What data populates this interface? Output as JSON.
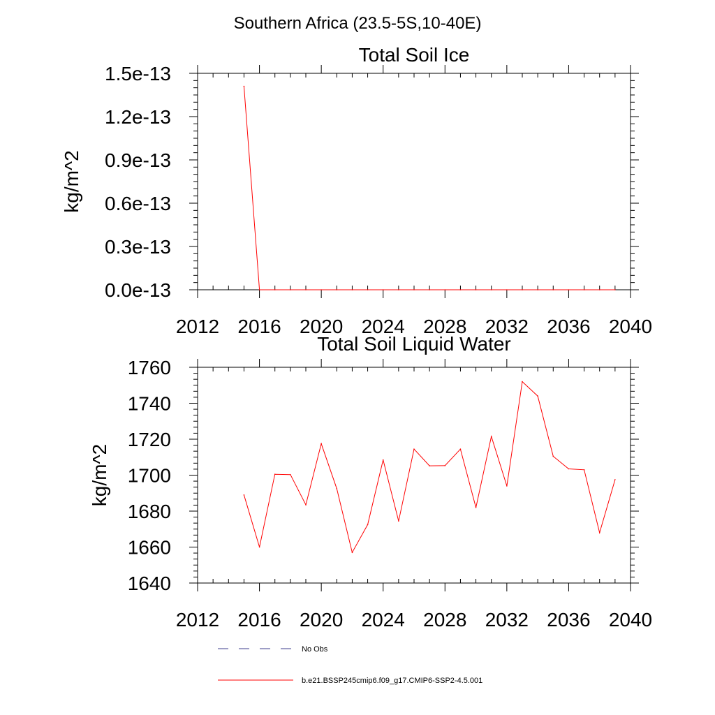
{
  "page_title": "Southern Africa (23.5-5S,10-40E)",
  "chart_data": [
    {
      "type": "line",
      "title": "Total Soil Ice",
      "xlabel": "",
      "ylabel": "kg/m^2",
      "xlim": [
        2012,
        2040
      ],
      "ylim": [
        0,
        1.5e-13
      ],
      "xticks": [
        2012,
        2016,
        2020,
        2024,
        2028,
        2032,
        2036,
        2040
      ],
      "xtick_labels": [
        "2012",
        "2016",
        "2020",
        "2024",
        "2028",
        "2032",
        "2036",
        "2040"
      ],
      "yticks": [
        0,
        3e-14,
        6e-14,
        9e-14,
        1.2e-13,
        1.5e-13
      ],
      "ytick_labels": [
        "0.0e-13",
        "0.3e-13",
        "0.6e-13",
        "0.9e-13",
        "1.2e-13",
        "1.5e-13"
      ],
      "series": [
        {
          "name": "b.e21.BSSP245cmip6.f09_g17.CMIP6-SSP2-4.5.001",
          "color": "#ff0000",
          "x": [
            2015,
            2016,
            2017,
            2018,
            2019,
            2020,
            2021,
            2022,
            2023,
            2024,
            2025,
            2026,
            2027,
            2028,
            2029,
            2030,
            2031,
            2032,
            2033,
            2034,
            2035,
            2036,
            2037,
            2038,
            2039
          ],
          "y": [
            1.41e-13,
            0,
            0,
            0,
            0,
            0,
            0,
            0,
            0,
            0,
            0,
            0,
            0,
            0,
            0,
            0,
            0,
            0,
            0,
            0,
            0,
            0,
            0,
            0,
            0
          ]
        }
      ]
    },
    {
      "type": "line",
      "title": "Total Soil Liquid Water",
      "xlabel": "",
      "ylabel": "kg/m^2",
      "xlim": [
        2012,
        2040
      ],
      "ylim": [
        1640,
        1760
      ],
      "xticks": [
        2012,
        2016,
        2020,
        2024,
        2028,
        2032,
        2036,
        2040
      ],
      "xtick_labels": [
        "2012",
        "2016",
        "2020",
        "2024",
        "2028",
        "2032",
        "2036",
        "2040"
      ],
      "yticks": [
        1640,
        1660,
        1680,
        1700,
        1720,
        1740,
        1760
      ],
      "ytick_labels": [
        "1640",
        "1660",
        "1680",
        "1700",
        "1720",
        "1740",
        "1760"
      ],
      "series": [
        {
          "name": "b.e21.BSSP245cmip6.f09_g17.CMIP6-SSP2-4.5.001",
          "color": "#ff0000",
          "x": [
            2015,
            2016,
            2017,
            2018,
            2019,
            2020,
            2021,
            2022,
            2023,
            2024,
            2025,
            2026,
            2027,
            2028,
            2029,
            2030,
            2031,
            2032,
            2033,
            2034,
            2035,
            2036,
            2037,
            2038,
            2039
          ],
          "y": [
            1689,
            1660,
            1700.5,
            1700.3,
            1683.5,
            1717.5,
            1692.5,
            1657,
            1672.5,
            1708.5,
            1674.5,
            1714.5,
            1705.2,
            1705.3,
            1714.5,
            1682,
            1721.5,
            1694,
            1752,
            1744,
            1710.5,
            1703.5,
            1703,
            1668,
            1697.5
          ]
        }
      ]
    }
  ],
  "legend": {
    "items": [
      {
        "label": "No Obs",
        "color": "#3c3c8c",
        "style": "dashed"
      },
      {
        "label": "b.e21.BSSP245cmip6.f09_g17.CMIP6-SSP2-4.5.001",
        "color": "#ff0000",
        "style": "solid"
      }
    ]
  }
}
